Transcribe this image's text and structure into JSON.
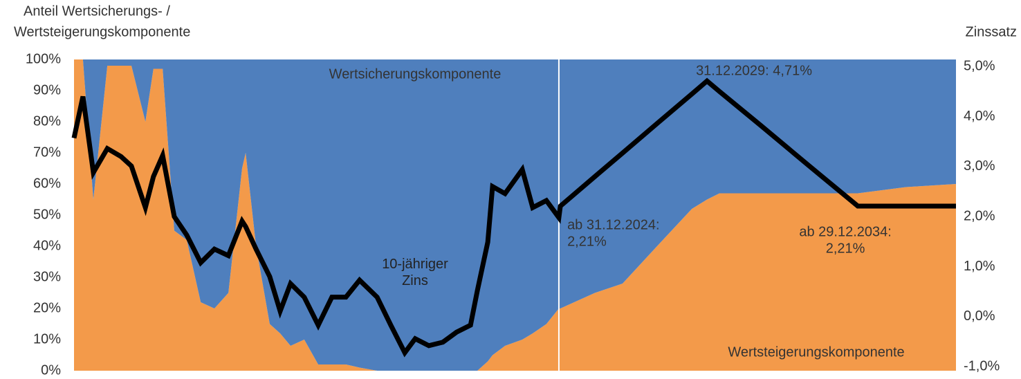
{
  "chart_data": {
    "type": "stacked-area-line",
    "y_title": [
      "Anteil Wertsicherungs- /",
      "Wertsteigerungskomponente"
    ],
    "y2_title": "Zinssatz",
    "x": [
      2008.7,
      2009.0,
      2009.35,
      2009.82,
      2010.28,
      2010.63,
      2011.1,
      2011.37,
      2011.68,
      2012.07,
      2012.49,
      2012.96,
      2013.42,
      2013.89,
      2014.35,
      2014.47,
      2014.82,
      2015.28,
      2015.63,
      2015.98,
      2016.44,
      2016.91,
      2017.37,
      2017.84,
      2018.3,
      2018.89,
      2019.35,
      2019.82,
      2020.17,
      2020.63,
      2021.1,
      2021.56,
      2022.03,
      2022.26,
      2022.61,
      2022.77,
      2023.19,
      2023.77,
      2024.12,
      2024.58,
      2025.0,
      2025.05,
      2026.21,
      2027.14,
      2028.3,
      2029.47,
      2029.98,
      2030.4,
      2031.79,
      2033.42,
      2035.05,
      2036.67,
      2038.35
    ],
    "xlim": [
      2008.7,
      2038.35
    ],
    "series": [
      {
        "name": "Wertsteigerungskomponente",
        "color": "#f39a4a",
        "kind": "area",
        "values": [
          100,
          100,
          55,
          98,
          98,
          98,
          80,
          97,
          97,
          45,
          42,
          22,
          20,
          25,
          65,
          70,
          40,
          15,
          12,
          8,
          10,
          2,
          2,
          2,
          1,
          0,
          0,
          0,
          0,
          0,
          0,
          0,
          0,
          0,
          3,
          5,
          8,
          10,
          12,
          15,
          20,
          20,
          25,
          28,
          40,
          52,
          55,
          57,
          57,
          57,
          57,
          59,
          60
        ]
      },
      {
        "name": "Wertsicherungskomponente",
        "color": "#4f7fbd",
        "kind": "area",
        "values": [
          0,
          0,
          45,
          2,
          2,
          2,
          20,
          3,
          3,
          55,
          58,
          78,
          80,
          75,
          35,
          30,
          60,
          85,
          88,
          92,
          90,
          98,
          98,
          98,
          99,
          100,
          100,
          100,
          100,
          100,
          100,
          100,
          100,
          100,
          97,
          95,
          92,
          90,
          88,
          85,
          80,
          80,
          75,
          72,
          60,
          48,
          45,
          43,
          43,
          43,
          43,
          41,
          40
        ]
      },
      {
        "name": "10-jähriger Zins",
        "color": "#000000",
        "kind": "line",
        "axis": "y2",
        "values": [
          3.57,
          4.4,
          2.88,
          3.36,
          3.2,
          3.01,
          2.18,
          2.8,
          3.22,
          2.0,
          1.63,
          1.08,
          1.35,
          1.22,
          1.91,
          1.8,
          1.35,
          0.8,
          0.11,
          0.66,
          0.39,
          -0.17,
          0.39,
          0.39,
          0.73,
          0.39,
          -0.17,
          -0.72,
          -0.44,
          -0.58,
          -0.51,
          -0.31,
          -0.17,
          0.52,
          1.49,
          2.6,
          2.46,
          2.94,
          2.18,
          2.32,
          1.98,
          2.21,
          2.8,
          3.27,
          3.86,
          4.45,
          4.71,
          4.5,
          3.82,
          3.01,
          2.21,
          2.21,
          2.21
        ]
      }
    ],
    "ylim": [
      0,
      100
    ],
    "yticks": [
      {
        "value": 0,
        "label": "0%"
      },
      {
        "value": 10,
        "label": "10%"
      },
      {
        "value": 20,
        "label": "20%"
      },
      {
        "value": 30,
        "label": "30%"
      },
      {
        "value": 40,
        "label": "40%"
      },
      {
        "value": 50,
        "label": "50%"
      },
      {
        "value": 60,
        "label": "60%"
      },
      {
        "value": 70,
        "label": "70%"
      },
      {
        "value": 80,
        "label": "80%"
      },
      {
        "value": 90,
        "label": "90%"
      },
      {
        "value": 100,
        "label": "100%"
      }
    ],
    "y2lim": [
      -1.08,
      5.14
    ],
    "y2ticks": [
      {
        "value": -1,
        "label": "-1,0%"
      },
      {
        "value": 0,
        "label": "0,0%"
      },
      {
        "value": 1,
        "label": "1,0%"
      },
      {
        "value": 2,
        "label": "2,0%"
      },
      {
        "value": 3,
        "label": "3,0%"
      },
      {
        "value": 4,
        "label": "4,0%"
      },
      {
        "value": 5,
        "label": "5,0%"
      }
    ],
    "vlines": [
      2025.0
    ],
    "grid": false,
    "annotations": [
      {
        "lines": [
          "31.12.2029: 4,71%"
        ],
        "x": 2029.98,
        "y": 4.71
      },
      {
        "lines": [
          "ab 31.12.2024:",
          "2,21%"
        ],
        "x": 2025.05,
        "y": 2.21
      },
      {
        "lines": [
          "ab 29.12.2034:",
          "2,21%"
        ],
        "x": 2035.05,
        "y": 2.21
      }
    ]
  }
}
